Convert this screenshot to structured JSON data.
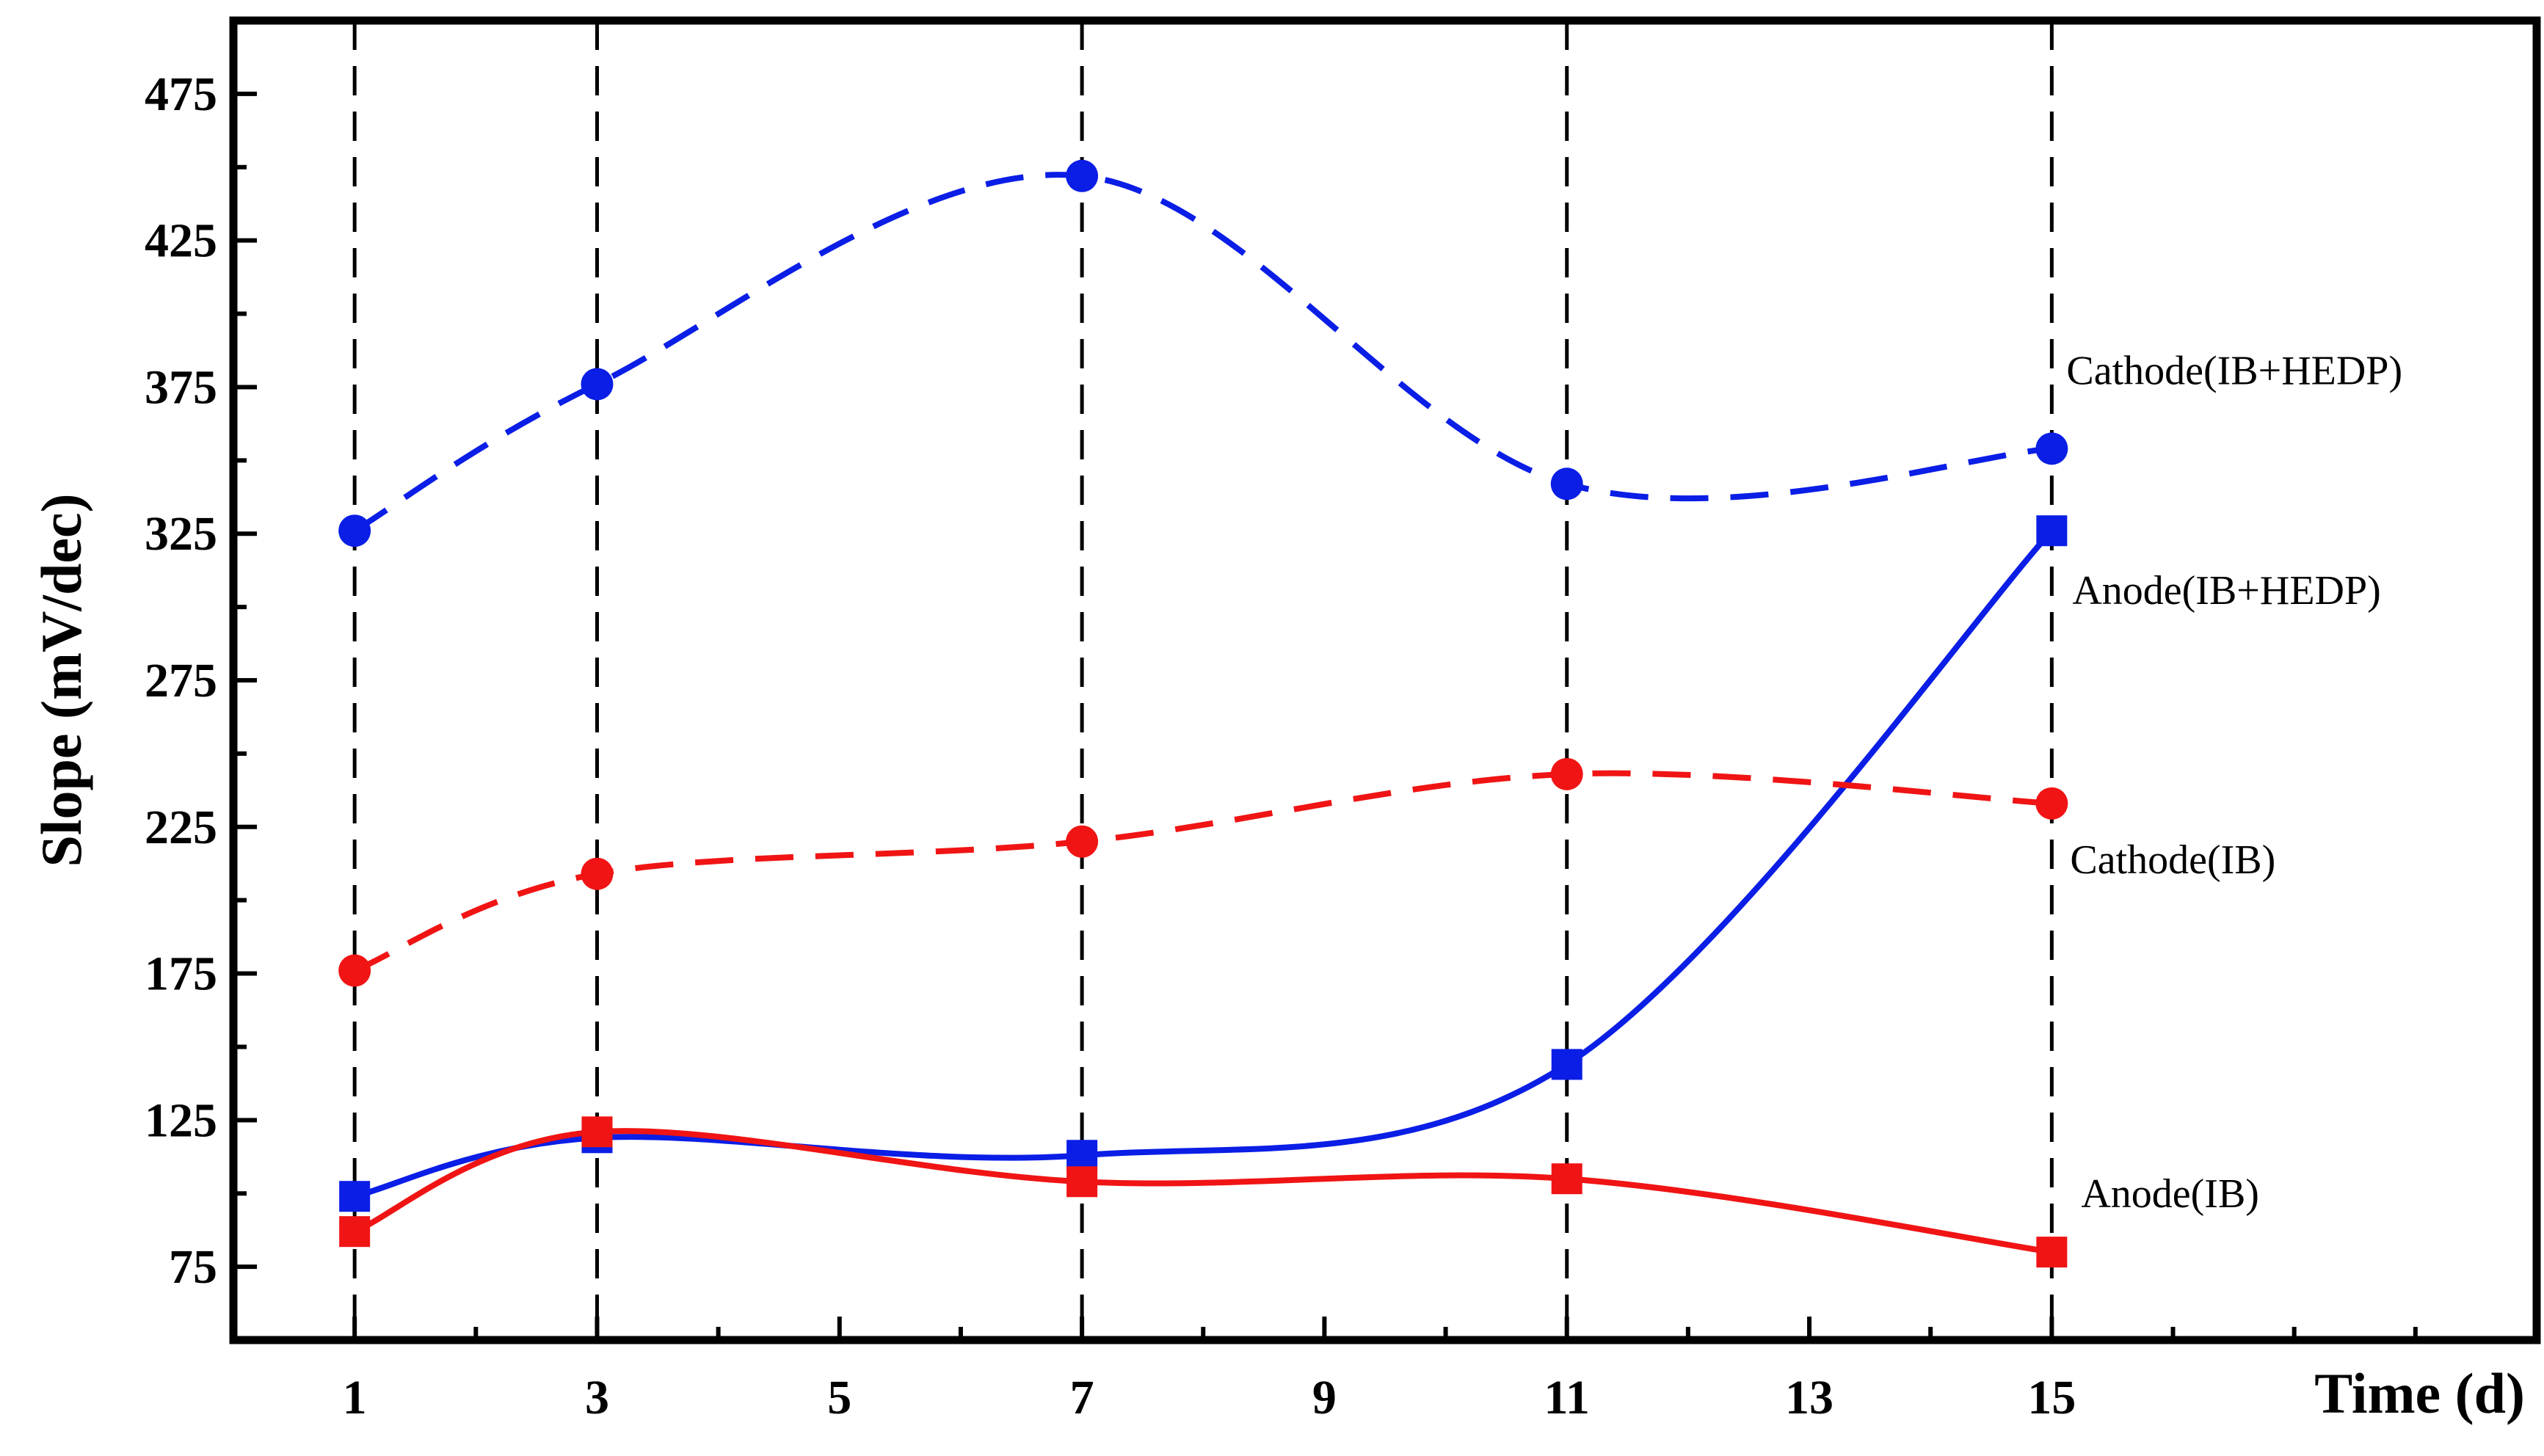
{
  "chart_data": {
    "type": "line",
    "xlabel": "Time (d)",
    "ylabel": "Slope (mV/dec)",
    "xlim": [
      0,
      19
    ],
    "ylim": [
      50,
      500
    ],
    "xticks": [
      1,
      3,
      5,
      7,
      9,
      11,
      13,
      15
    ],
    "yticks": [
      75,
      125,
      175,
      225,
      275,
      325,
      375,
      425,
      475
    ],
    "grid": false,
    "legend": "none",
    "vertical_reference_lines": [
      1,
      3,
      7,
      11,
      15
    ],
    "series": [
      {
        "name": "Cathode(IB+HEDP)",
        "x": [
          1,
          3,
          7,
          11,
          15
        ],
        "values": [
          326,
          376,
          447,
          342,
          354
        ],
        "color": "#0a1ee6",
        "line_style": "dashed",
        "marker": "circle"
      },
      {
        "name": "Anode(IB+HEDP)",
        "x": [
          1,
          3,
          7,
          11,
          15
        ],
        "values": [
          99,
          119,
          113,
          144,
          326
        ],
        "color": "#0a1ee6",
        "line_style": "solid",
        "marker": "square"
      },
      {
        "name": "Cathode(IB)",
        "x": [
          1,
          3,
          7,
          11,
          15
        ],
        "values": [
          176,
          209,
          220,
          243,
          233
        ],
        "color": "#f01414",
        "line_style": "dashed",
        "marker": "circle"
      },
      {
        "name": "Anode(IB)",
        "x": [
          1,
          3,
          7,
          11,
          15
        ],
        "values": [
          87,
          121,
          104,
          105,
          80
        ],
        "color": "#f01414",
        "line_style": "solid",
        "marker": "square"
      }
    ]
  }
}
